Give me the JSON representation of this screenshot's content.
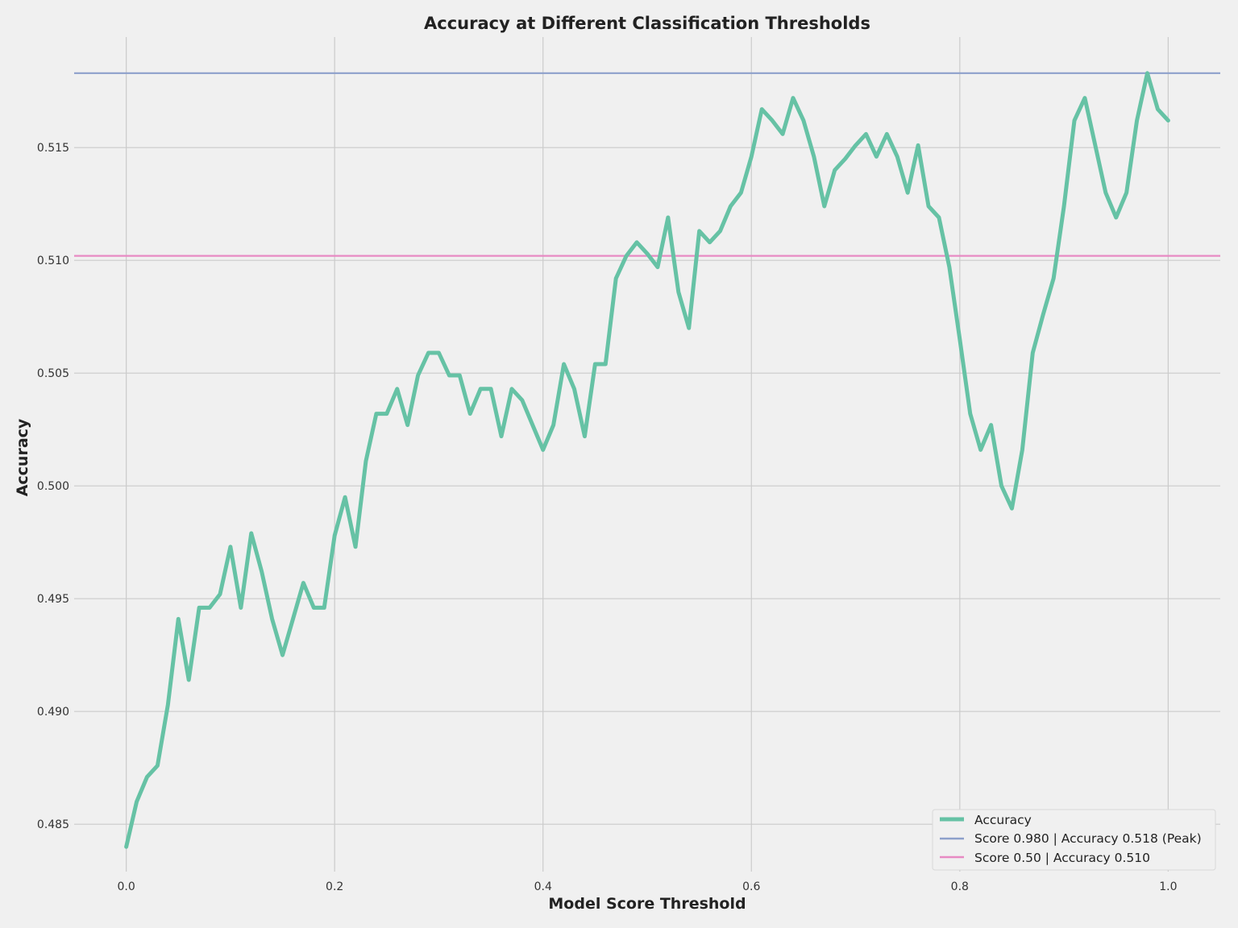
{
  "chart_data": {
    "type": "line",
    "title": "Accuracy at Different Classification Thresholds",
    "xlabel": "Model Score Threshold",
    "ylabel": "Accuracy",
    "xlim": [
      -0.05,
      1.05
    ],
    "ylim": [
      0.4829,
      0.5199
    ],
    "x_ticks": [
      0.0,
      0.2,
      0.4,
      0.6,
      0.8,
      1.0
    ],
    "x_tick_labels": [
      "0.0",
      "0.2",
      "0.4",
      "0.6",
      "0.8",
      "1.0"
    ],
    "y_ticks": [
      0.485,
      0.49,
      0.495,
      0.5,
      0.505,
      0.51,
      0.515
    ],
    "y_tick_labels": [
      "0.485",
      "0.490",
      "0.495",
      "0.500",
      "0.505",
      "0.510",
      "0.515"
    ],
    "grid": true,
    "legend_position": "bottom-right",
    "series": [
      {
        "name": "Accuracy",
        "color": "#66c2a5",
        "x": [
          0.0,
          0.01,
          0.02,
          0.03,
          0.04,
          0.05,
          0.06,
          0.07,
          0.08,
          0.09,
          0.1,
          0.11,
          0.12,
          0.13,
          0.14,
          0.15,
          0.16,
          0.17,
          0.18,
          0.19,
          0.2,
          0.21,
          0.22,
          0.23,
          0.24,
          0.25,
          0.26,
          0.27,
          0.28,
          0.29,
          0.3,
          0.31,
          0.32,
          0.33,
          0.34,
          0.35,
          0.36,
          0.37,
          0.38,
          0.39,
          0.4,
          0.41,
          0.42,
          0.43,
          0.44,
          0.45,
          0.46,
          0.47,
          0.48,
          0.49,
          0.5,
          0.51,
          0.52,
          0.53,
          0.54,
          0.55,
          0.56,
          0.57,
          0.58,
          0.59,
          0.6,
          0.61,
          0.62,
          0.63,
          0.64,
          0.65,
          0.66,
          0.67,
          0.68,
          0.69,
          0.7,
          0.71,
          0.72,
          0.73,
          0.74,
          0.75,
          0.76,
          0.77,
          0.78,
          0.79,
          0.8,
          0.81,
          0.82,
          0.83,
          0.84,
          0.85,
          0.86,
          0.87,
          0.88,
          0.89,
          0.9,
          0.91,
          0.92,
          0.93,
          0.94,
          0.95,
          0.96,
          0.97,
          0.98,
          0.99,
          1.0
        ],
        "y": [
          0.484,
          0.486,
          0.4871,
          0.4876,
          0.4903,
          0.4941,
          0.4914,
          0.4946,
          0.4946,
          0.4952,
          0.4973,
          0.4946,
          0.4979,
          0.4962,
          0.4941,
          0.4925,
          0.4941,
          0.4957,
          0.4946,
          0.4946,
          0.4978,
          0.4995,
          0.4973,
          0.5011,
          0.5032,
          0.5032,
          0.5043,
          0.5027,
          0.5049,
          0.5059,
          0.5059,
          0.5049,
          0.5049,
          0.5032,
          0.5043,
          0.5043,
          0.5022,
          0.5043,
          0.5038,
          0.5027,
          0.5016,
          0.5027,
          0.5054,
          0.5043,
          0.5022,
          0.5054,
          0.5054,
          0.5092,
          0.5102,
          0.5108,
          0.5103,
          0.5097,
          0.5119,
          0.5086,
          0.507,
          0.5113,
          0.5108,
          0.5113,
          0.5124,
          0.513,
          0.5146,
          0.5167,
          0.5162,
          0.5156,
          0.5172,
          0.5162,
          0.5146,
          0.5124,
          0.514,
          0.5145,
          0.5151,
          0.5156,
          0.5146,
          0.5156,
          0.5146,
          0.513,
          0.5151,
          0.5124,
          0.5119,
          0.5097,
          0.5065,
          0.5032,
          0.5016,
          0.5027,
          0.5,
          0.499,
          0.5016,
          0.5059,
          0.5076,
          0.5092,
          0.5124,
          0.5162,
          0.5172,
          0.5151,
          0.513,
          0.5119,
          0.513,
          0.5162,
          0.5183,
          0.5167,
          0.5162
        ]
      }
    ],
    "reference_lines": [
      {
        "name": "Score 0.980 | Accuracy 0.518 (Peak)",
        "y": 0.5183,
        "color": "#8da0cb"
      },
      {
        "name": "Score 0.50 | Accuracy 0.510",
        "y": 0.5102,
        "color": "#e78ac3"
      }
    ]
  }
}
